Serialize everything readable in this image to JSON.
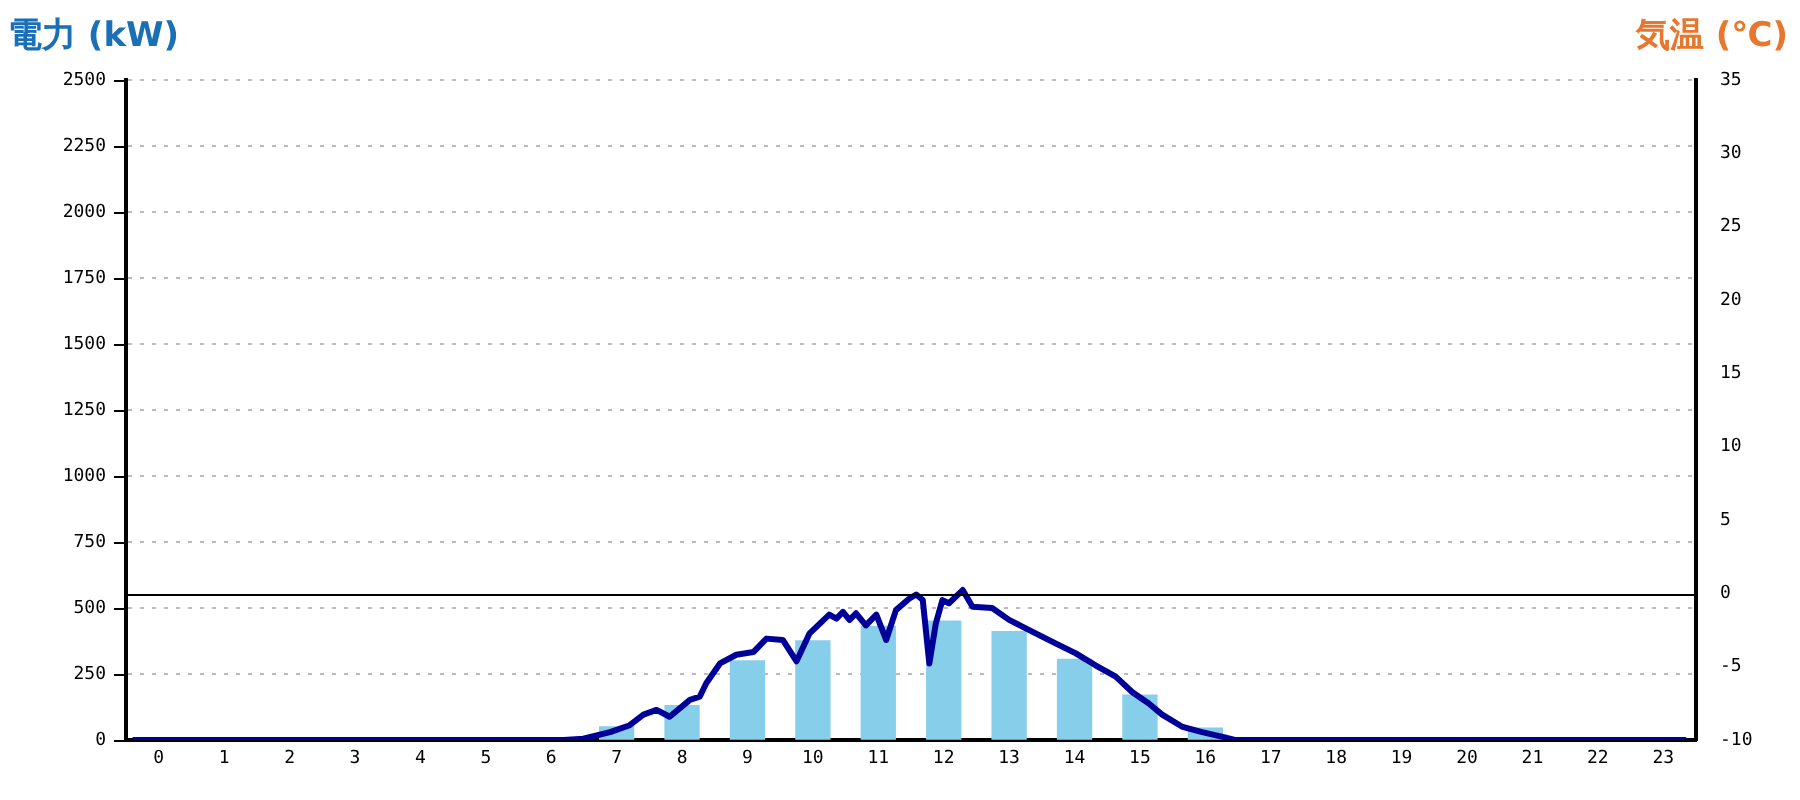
{
  "chart_data": {
    "type": "bar",
    "xlabel": null,
    "ylabel": "電力 (kW)",
    "y2label": "気温 (℃)",
    "x": [
      0,
      1,
      2,
      3,
      4,
      5,
      6,
      7,
      8,
      9,
      10,
      11,
      12,
      13,
      14,
      15,
      16,
      17,
      18,
      19,
      20,
      21,
      22,
      23
    ],
    "series": [
      {
        "color": "#87ceeb",
        "values": [
          0,
          0,
          0,
          0,
          0,
          0,
          0,
          50,
          130,
          300,
          375,
          430,
          450,
          410,
          305,
          170,
          45,
          0,
          0,
          0,
          0,
          0,
          0,
          0
        ]
      },
      {
        "type": "line",
        "color": "#000099",
        "x": [
          -0.4,
          6.19,
          6.49,
          6.9,
          7.2,
          7.41,
          7.61,
          7.81,
          8.12,
          8.27,
          8.37,
          8.58,
          8.83,
          9.09,
          9.29,
          9.54,
          9.75,
          9.95,
          10.25,
          10.36,
          10.46,
          10.56,
          10.66,
          10.81,
          10.97,
          11.12,
          11.27,
          11.47,
          11.58,
          11.68,
          11.78,
          11.88,
          11.98,
          12.08,
          12.29,
          12.44,
          12.74,
          13.0,
          13.3,
          13.71,
          14.02,
          14.32,
          14.63,
          14.88,
          15.13,
          15.34,
          15.64,
          15.95,
          16.25,
          16.45,
          23.35
        ],
        "values": [
          0,
          0,
          5,
          30,
          56,
          96,
          114,
          88,
          152,
          164,
          215,
          290,
          323,
          333,
          384,
          379,
          298,
          404,
          475,
          460,
          485,
          455,
          480,
          434,
          475,
          379,
          492,
          535,
          551,
          530,
          290,
          442,
          530,
          518,
          568,
          505,
          500,
          455,
          417,
          366,
          328,
          283,
          240,
          182,
          139,
          96,
          51,
          30,
          13,
          0,
          0
        ]
      }
    ],
    "xlim": [
      -0.5,
      23.5
    ],
    "xticks": [
      0,
      1,
      2,
      3,
      4,
      5,
      6,
      7,
      8,
      9,
      10,
      11,
      12,
      13,
      14,
      15,
      16,
      17,
      18,
      19,
      20,
      21,
      22,
      23
    ],
    "ylim": [
      0,
      2500
    ],
    "yticks": [
      0,
      250,
      500,
      750,
      1000,
      1250,
      1500,
      1750,
      2000,
      2250,
      2500
    ],
    "y2lim": [
      -10,
      35
    ],
    "y2ticks": [
      -10,
      -5,
      0,
      5,
      10,
      15,
      20,
      25,
      30,
      35
    ],
    "ref_lines": [
      {
        "axis": "y2",
        "value": 0,
        "color": "#000000"
      }
    ],
    "grid": "y",
    "legend": false
  }
}
